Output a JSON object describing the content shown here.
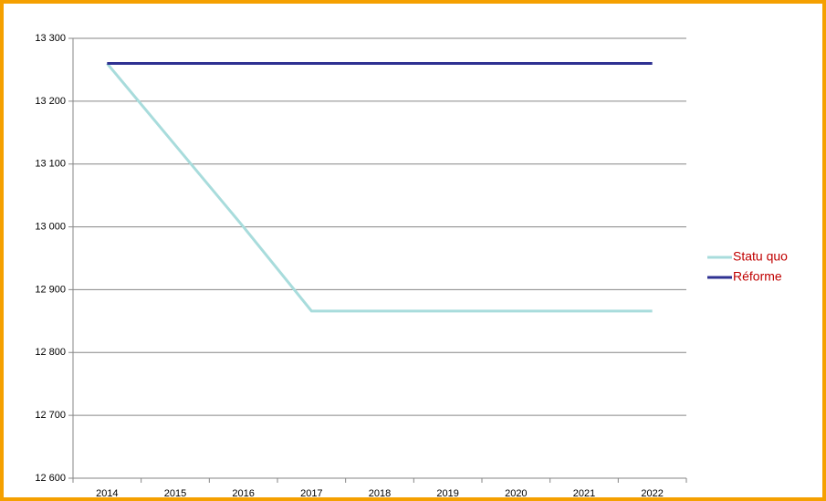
{
  "chart_data": {
    "type": "line",
    "categories": [
      "2014",
      "2015",
      "2016",
      "2017",
      "2018",
      "2019",
      "2020",
      "2021",
      "2022"
    ],
    "series": [
      {
        "name": "Statu quo",
        "color": "#a8dcdc",
        "values": [
          13260,
          13130,
          13000,
          12866,
          12866,
          12866,
          12866,
          12866,
          12866
        ]
      },
      {
        "name": "Réforme",
        "color": "#2e3192",
        "values": [
          13260,
          13260,
          13260,
          13260,
          13260,
          13260,
          13260,
          13260,
          13260
        ]
      }
    ],
    "ylim": [
      12600,
      13300
    ],
    "yticks": [
      {
        "value": 12600,
        "label": "12 600"
      },
      {
        "value": 12700,
        "label": "12 700"
      },
      {
        "value": 12800,
        "label": "12 800"
      },
      {
        "value": 12900,
        "label": "12 900"
      },
      {
        "value": 13000,
        "label": "13 000"
      },
      {
        "value": 13100,
        "label": "13 100"
      },
      {
        "value": 13200,
        "label": "13 200"
      },
      {
        "value": 13300,
        "label": "13 300"
      }
    ],
    "grid": true,
    "legend": "right"
  }
}
